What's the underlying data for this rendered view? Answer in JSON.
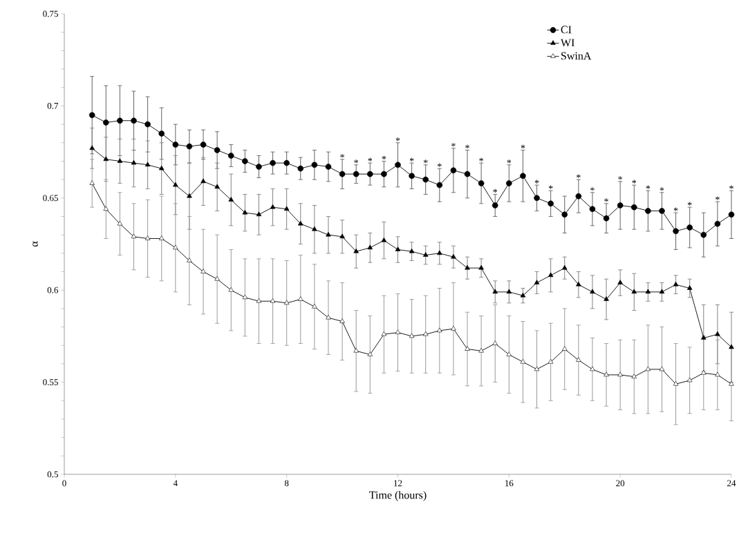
{
  "chart_data": {
    "type": "line",
    "xlabel": "Time (hours)",
    "ylabel": "α",
    "x": [
      1,
      1.5,
      2,
      2.5,
      3,
      3.5,
      4,
      4.5,
      5,
      5.5,
      6,
      6.5,
      7,
      7.5,
      8,
      8.5,
      9,
      9.5,
      10,
      10.5,
      11,
      11.5,
      12,
      12.5,
      13,
      13.5,
      14,
      14.5,
      15,
      15.5,
      16,
      16.5,
      17,
      17.5,
      18,
      18.5,
      19,
      19.5,
      20,
      20.5,
      21,
      21.5,
      22,
      22.5,
      23,
      23.5,
      24
    ],
    "series": [
      {
        "name": "CI",
        "color": "#000000",
        "marker": "circle",
        "values": [
          0.695,
          0.691,
          0.692,
          0.692,
          0.69,
          0.685,
          0.679,
          0.678,
          0.679,
          0.676,
          0.673,
          0.67,
          0.667,
          0.669,
          0.669,
          0.666,
          0.668,
          0.667,
          0.663,
          0.663,
          0.663,
          0.663,
          0.668,
          0.662,
          0.66,
          0.657,
          0.665,
          0.663,
          0.658,
          0.646,
          0.658,
          0.662,
          0.65,
          0.647,
          0.641,
          0.651,
          0.644,
          0.639,
          0.646,
          0.645,
          0.643,
          0.643,
          0.632,
          0.634,
          0.63,
          0.636,
          0.641
        ],
        "errors": [
          0.021,
          0.02,
          0.019,
          0.016,
          0.015,
          0.014,
          0.011,
          0.009,
          0.008,
          0.01,
          0.006,
          0.006,
          0.006,
          0.006,
          0.006,
          0.006,
          0.008,
          0.008,
          0.008,
          0.005,
          0.006,
          0.007,
          0.012,
          0.007,
          0.008,
          0.009,
          0.012,
          0.013,
          0.011,
          0.006,
          0.01,
          0.014,
          0.007,
          0.007,
          0.01,
          0.009,
          0.009,
          0.008,
          0.013,
          0.012,
          0.011,
          0.01,
          0.01,
          0.011,
          0.012,
          0.012,
          0.013
        ]
      },
      {
        "name": "WI",
        "color": "#000000",
        "marker": "triangle",
        "values": [
          0.677,
          0.671,
          0.67,
          0.669,
          0.668,
          0.666,
          0.657,
          0.651,
          0.659,
          0.656,
          0.649,
          0.642,
          0.641,
          0.645,
          0.644,
          0.636,
          0.633,
          0.63,
          0.629,
          0.621,
          0.623,
          0.627,
          0.622,
          0.621,
          0.619,
          0.62,
          0.618,
          0.612,
          0.612,
          0.599,
          0.599,
          0.597,
          0.604,
          0.608,
          0.612,
          0.603,
          0.599,
          0.595,
          0.604,
          0.599,
          0.599,
          0.599,
          0.603,
          0.601,
          0.574,
          0.576,
          0.569
        ],
        "errors": [
          0.011,
          0.012,
          0.012,
          0.013,
          0.013,
          0.014,
          0.016,
          0.018,
          0.013,
          0.013,
          0.014,
          0.01,
          0.011,
          0.01,
          0.011,
          0.011,
          0.013,
          0.01,
          0.009,
          0.009,
          0.008,
          0.01,
          0.007,
          0.005,
          0.005,
          0.006,
          0.006,
          0.006,
          0.005,
          0.006,
          0.006,
          0.004,
          0.006,
          0.009,
          0.006,
          0.007,
          0.009,
          0.011,
          0.007,
          0.01,
          0.005,
          0.005,
          0.005,
          0.005,
          0.018,
          0.016,
          0.019
        ]
      },
      {
        "name": "SwinA",
        "color": "#ffffff",
        "marker": "triangle",
        "values": [
          0.658,
          0.644,
          0.636,
          0.629,
          0.628,
          0.628,
          0.623,
          0.616,
          0.61,
          0.606,
          0.6,
          0.596,
          0.594,
          0.594,
          0.593,
          0.595,
          0.591,
          0.585,
          0.583,
          0.567,
          0.565,
          0.576,
          0.577,
          0.575,
          0.576,
          0.578,
          0.579,
          0.568,
          0.567,
          0.571,
          0.565,
          0.561,
          0.557,
          0.561,
          0.568,
          0.562,
          0.557,
          0.554,
          0.554,
          0.553,
          0.557,
          0.557,
          0.549,
          0.551,
          0.555,
          0.554,
          0.549
        ],
        "errors": [
          0.013,
          0.016,
          0.017,
          0.018,
          0.021,
          0.023,
          0.024,
          0.024,
          0.023,
          0.024,
          0.022,
          0.021,
          0.023,
          0.023,
          0.023,
          0.024,
          0.023,
          0.02,
          0.021,
          0.022,
          0.021,
          0.021,
          0.021,
          0.02,
          0.021,
          0.023,
          0.025,
          0.02,
          0.019,
          0.021,
          0.021,
          0.022,
          0.021,
          0.021,
          0.022,
          0.019,
          0.017,
          0.017,
          0.019,
          0.02,
          0.024,
          0.023,
          0.022,
          0.018,
          0.02,
          0.019,
          0.02
        ]
      }
    ],
    "xlim": [
      0,
      24
    ],
    "xticks": [
      0,
      4,
      8,
      12,
      16,
      20,
      24
    ],
    "ylim": [
      0.5,
      0.75
    ],
    "yticks": [
      0.5,
      {
        "value": 0.51,
        "label": null
      },
      {
        "value": 0.52,
        "label": null
      },
      {
        "value": 0.53,
        "label": null
      },
      {
        "value": 0.54,
        "label": null
      },
      0.55,
      {
        "value": 0.56,
        "label": null
      },
      {
        "value": 0.57,
        "label": null
      },
      {
        "value": 0.58,
        "label": null
      },
      {
        "value": 0.59,
        "label": null
      },
      0.6,
      {
        "value": 0.61,
        "label": null
      },
      {
        "value": 0.62,
        "label": null
      },
      {
        "value": 0.63,
        "label": null
      },
      {
        "value": 0.64,
        "label": null
      },
      0.65,
      {
        "value": 0.66,
        "label": null
      },
      {
        "value": 0.67,
        "label": null
      },
      {
        "value": 0.68,
        "label": null
      },
      {
        "value": 0.69,
        "label": null
      },
      0.7,
      {
        "value": 0.71,
        "label": null
      },
      {
        "value": 0.72,
        "label": null
      },
      {
        "value": 0.73,
        "label": null
      },
      {
        "value": 0.74,
        "label": null
      },
      0.75
    ],
    "legend": "top right",
    "grid": false,
    "annotations": [
      {
        "text": "*",
        "x": 10,
        "y": 0.663
      },
      {
        "text": "*",
        "x": 10.5,
        "y": 0.663
      },
      {
        "text": "*",
        "x": 11,
        "y": 0.663
      },
      {
        "text": "*",
        "x": 11.5,
        "y": 0.663
      },
      {
        "text": "*",
        "x": 12,
        "y": 0.668
      },
      {
        "text": "*",
        "x": 12.5,
        "y": 0.662
      },
      {
        "text": "*",
        "x": 13,
        "y": 0.66
      },
      {
        "text": "*",
        "x": 13.5,
        "y": 0.657
      },
      {
        "text": "*",
        "x": 14,
        "y": 0.665
      },
      {
        "text": "*",
        "x": 14.5,
        "y": 0.663
      },
      {
        "text": "*",
        "x": 15,
        "y": 0.658
      },
      {
        "text": "*",
        "x": 15.5,
        "y": 0.646
      },
      {
        "text": "*",
        "x": 16,
        "y": 0.658
      },
      {
        "text": "*",
        "x": 16.5,
        "y": 0.662
      },
      {
        "text": "*",
        "x": 17,
        "y": 0.65
      },
      {
        "text": "*",
        "x": 17.5,
        "y": 0.647
      },
      {
        "text": "*",
        "x": 18.5,
        "y": 0.651
      },
      {
        "text": "*",
        "x": 19,
        "y": 0.644
      },
      {
        "text": "*",
        "x": 19.5,
        "y": 0.639
      },
      {
        "text": "*",
        "x": 20,
        "y": 0.646
      },
      {
        "text": "*",
        "x": 20.5,
        "y": 0.645
      },
      {
        "text": "*",
        "x": 21,
        "y": 0.643
      },
      {
        "text": "*",
        "x": 21.5,
        "y": 0.643
      },
      {
        "text": "*",
        "x": 22,
        "y": 0.632
      },
      {
        "text": "*",
        "x": 22.5,
        "y": 0.634
      },
      {
        "text": "*",
        "x": 23.5,
        "y": 0.636
      },
      {
        "text": "*",
        "x": 24,
        "y": 0.641
      }
    ]
  }
}
